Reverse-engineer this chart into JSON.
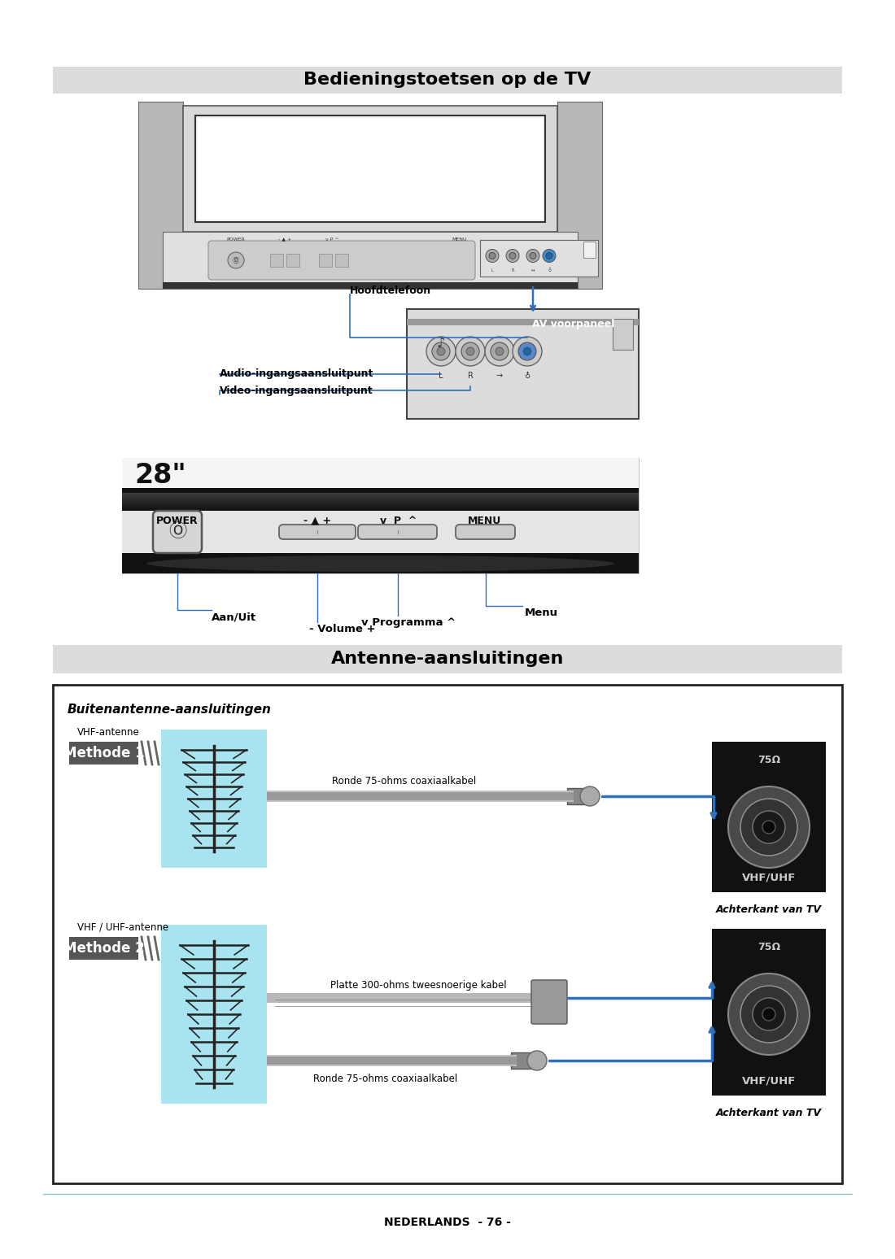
{
  "title1": "Bedieningstoetsen op de TV",
  "title2": "Antenne-aansluitingen",
  "section1_header_bg": "#dcdcdc",
  "section2_header_bg": "#dcdcdc",
  "page_bg": "#ffffff",
  "av_label": "AV voorpaneel",
  "av_label_bg": "#2e6fbe",
  "av_label_color": "#ffffff",
  "label_hoofdtelefoon": "Hoofdtelefoon",
  "label_audio": "Audio-ingangsaansluitpunt",
  "label_video": "Video-ingangsaansluitpunt",
  "label_aanuit": "Aan/Uit",
  "label_volume": "- Volume +",
  "label_programma": "v Programma ^",
  "label_menu": "Menu",
  "label_power": "POWER",
  "label_menu_top": "MENU",
  "label_28inch": "28\"",
  "buitenantenne_title": "Buitenantenne-aansluitingen",
  "methode1_label": "Methode 1",
  "methode2_label": "Methode 2",
  "vhf_antenne": "VHF-antenne",
  "vhf_uhf_antenne": "VHF / UHF-antenne",
  "ronde_kabel": "Ronde 75-ohms coaxiaalkabel",
  "platte_kabel": "Platte 300-ohms tweesnoerige kabel",
  "ronde_kabel2": "Ronde 75-ohms coaxiaalkabel",
  "vhfuhf_label": "VHF/UHF",
  "achterkant": "Achterkant van TV",
  "ohm_label": "75Ω",
  "footer_text": "NEDERLANDS  - 76 -",
  "line_color": "#2e6fbe",
  "antenna_bg": "#a8e4f0",
  "connector_bg": "#111111"
}
